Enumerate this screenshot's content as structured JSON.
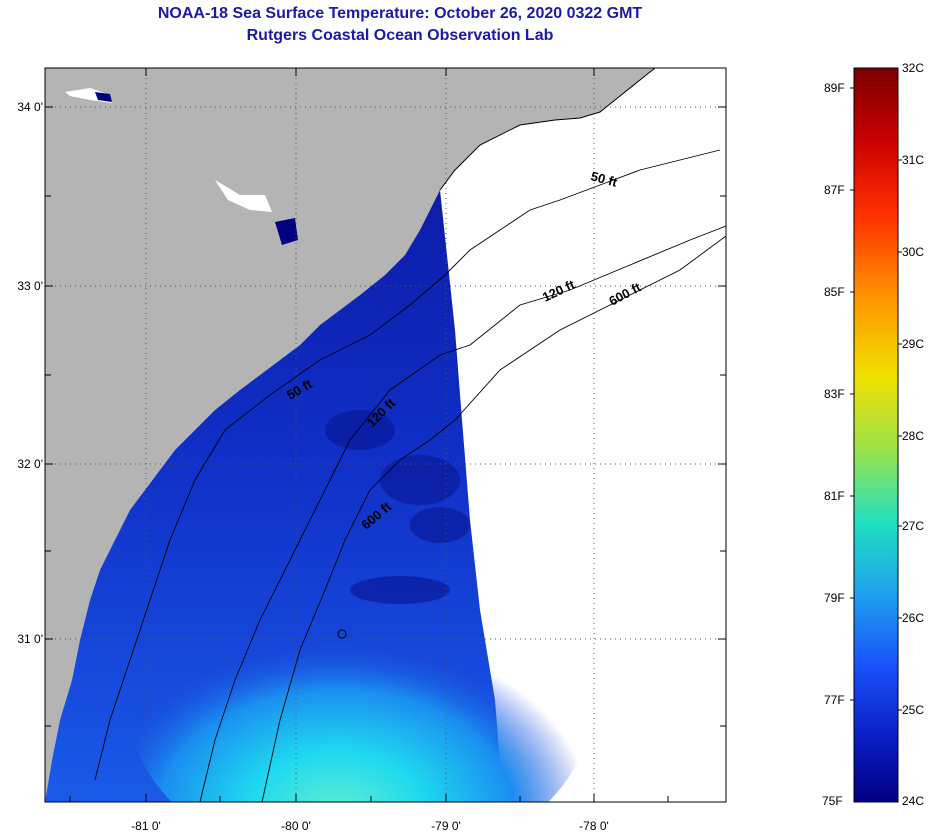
{
  "title": {
    "line1": "NOAA-18 Sea Surface Temperature:  October 26, 2020 0322 GMT",
    "line2": "Rutgers Coastal Ocean Observation Lab"
  },
  "axes": {
    "longitude_labels": [
      "-81 0'",
      "-80 0'",
      "-79 0'",
      "-78 0'"
    ],
    "latitude_labels": [
      "34 0'",
      "33 0'",
      "32 0'",
      "31 0'"
    ]
  },
  "depth_contours": [
    "50 ft",
    "120 ft",
    "600 ft",
    "50 ft",
    "120 ft",
    "600 ft"
  ],
  "colorbar": {
    "celsius": [
      "32C",
      "31C",
      "30C",
      "29C",
      "28C",
      "27C",
      "26C",
      "25C",
      "24C"
    ],
    "fahrenheit": [
      "89F",
      "87F",
      "85F",
      "83F",
      "81F",
      "79F",
      "77F",
      "75F"
    ],
    "colors": [
      "#7a0000",
      "#cc0000",
      "#ff3000",
      "#ff9a00",
      "#f0e000",
      "#9be24a",
      "#20e0c0",
      "#1e9ef0",
      "#1a4ef8",
      "#0a1abf",
      "#000080"
    ]
  },
  "colors": {
    "land": "#b4b4b4",
    "no_data": "#ffffff",
    "title": "#1a1aa6"
  }
}
